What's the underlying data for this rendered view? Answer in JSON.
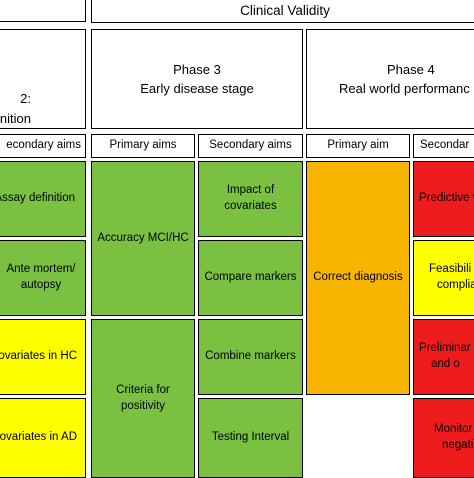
{
  "header": {
    "banner": "Clinical Validity"
  },
  "phases": [
    {
      "line1": "2:",
      "line2": "nition"
    },
    {
      "line1": "Phase 3",
      "line2": "Early disease stage"
    },
    {
      "line1": "Phase 4",
      "line2": "Real world performanc"
    }
  ],
  "aims": [
    "econdary aims",
    "Primary aims",
    "Secondary aims",
    "Primary aim",
    "Secondar"
  ],
  "phase2_secondary": [
    {
      "lines": [
        "Assay definition"
      ],
      "color": "#7ac142"
    },
    {
      "lines": [
        "Ante mortem/",
        "autopsy"
      ],
      "color": "#7ac142"
    },
    {
      "lines": [
        "Covariates in HC"
      ],
      "color": "#ffff00"
    },
    {
      "lines": [
        "Covariates in AD"
      ],
      "color": "#ffff00"
    }
  ],
  "phase3_primary": [
    {
      "lines": [
        "Accuracy MCI/HC"
      ],
      "color": "#7ac142"
    },
    {
      "lines": [
        "Criteria for",
        "positivity"
      ],
      "color": "#7ac142"
    }
  ],
  "phase3_secondary": [
    {
      "lines": [
        "Impact of",
        "covariates"
      ],
      "color": "#7ac142"
    },
    {
      "lines": [
        "Compare markers"
      ],
      "color": "#7ac142"
    },
    {
      "lines": [
        "Combine markers"
      ],
      "color": "#7ac142"
    },
    {
      "lines": [
        "Testing Interval"
      ],
      "color": "#7ac142"
    }
  ],
  "phase4_primary": [
    {
      "lines": [
        "Correct diagnosis"
      ],
      "color": "#f7b500"
    }
  ],
  "phase4_secondary": [
    {
      "lines": [
        "Predictive v"
      ],
      "color": "#ee1c1c"
    },
    {
      "lines": [
        "Feasibili",
        "complia"
      ],
      "color": "#ffff00"
    },
    {
      "lines": [
        "Preliminar",
        "and o"
      ],
      "color": "#ee1c1c"
    },
    {
      "lines": [
        "Monitor",
        "negati"
      ],
      "color": "#ee1c1c"
    }
  ]
}
